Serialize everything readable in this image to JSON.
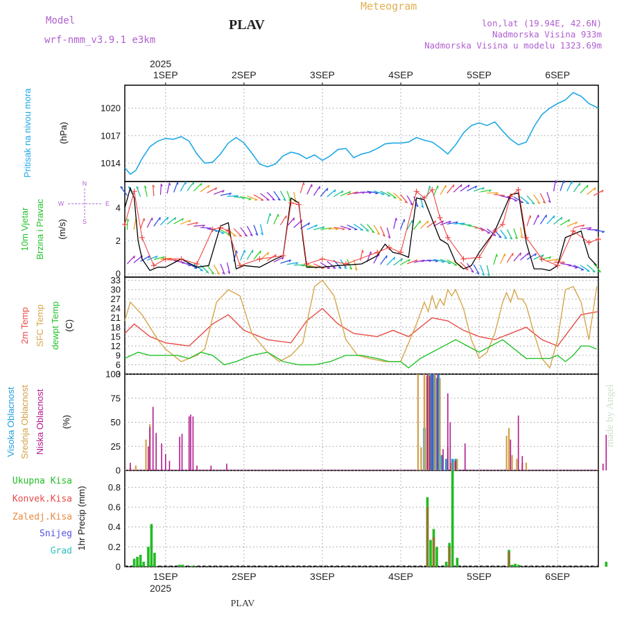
{
  "header": {
    "model_label": "Model",
    "model_name": "wrf-nmm_v3.9.1  e3km",
    "station": "PLAV",
    "meteogram_label": "Meteogram",
    "lonlat": "lon,lat (19.94E, 42.6N)",
    "elevation": "Nadmorska Visina 933m",
    "model_elevation": "Nadmorska Visina u modelu 1323.69m"
  },
  "footer": {
    "station": "PLAV",
    "credit": "made by Angel"
  },
  "colors": {
    "pressure": "#1ea8e6",
    "temp": "#e84a45",
    "sfc": "#d6a54a",
    "dew": "#22c22a",
    "high_cloud": "#1f9fdc",
    "mid_cloud": "#d2a048",
    "low_cloud": "#b0188f",
    "precip": "#22bb22",
    "precip_dark": "#8a7a2a",
    "wind_black": "#000000",
    "wind_red": "#ee3333"
  },
  "time_axis": {
    "year": "2025",
    "days": [
      "1SEP",
      "2SEP",
      "3SEP",
      "4SEP",
      "5SEP",
      "6SEP"
    ],
    "range_days": [
      -0.52,
      5.52
    ]
  },
  "panels": {
    "pressure": {
      "label": "Pritisak na nivou mora",
      "unit": "(hPa)",
      "y_ticks": [
        "1014",
        "1017",
        "1020"
      ]
    },
    "wind": {
      "label1": "10m Vjetar",
      "label2": "Brzina i Pravac",
      "unit": "(m/s)",
      "y_ticks": [
        "0",
        "2",
        "4"
      ],
      "compass": {
        "n": "N",
        "s": "S",
        "w": "W",
        "e": "E"
      }
    },
    "temperature": {
      "label1": "2m Temp",
      "label2": "SFC Temp",
      "label3": "dewpt Temp",
      "unit": "(C)",
      "y_ticks": [
        "3",
        "6",
        "9",
        "12",
        "15",
        "18",
        "21",
        "24",
        "27",
        "30",
        "33"
      ]
    },
    "clouds": {
      "label1": "Visoka Oblacnost",
      "label2": "Srednja Oblacnost",
      "label3": "Niska Oblacnost",
      "unit": "(%)",
      "y_ticks": [
        "0",
        "25",
        "50",
        "75",
        "100"
      ]
    },
    "precip": {
      "label1": "Ukupna Kisa",
      "label2": "Konvek.Kisa",
      "label3": "Zaledj.Kisa",
      "label4": "Snijeg",
      "label5": "Grad",
      "unit": "1hr Precip (mm)",
      "y_ticks": [
        "0",
        "0.2",
        "0.4",
        "0.6",
        "0.8"
      ]
    }
  },
  "chart_data": [
    {
      "type": "line",
      "title": "Pritisak na nivou mora",
      "ylabel": "(hPa)",
      "ylim": [
        1012,
        1022.5
      ],
      "series": [
        {
          "name": "pressure",
          "x": [
            -0.52,
            -0.45,
            -0.38,
            -0.3,
            -0.2,
            -0.1,
            0,
            0.1,
            0.2,
            0.3,
            0.4,
            0.5,
            0.6,
            0.7,
            0.8,
            0.9,
            1.0,
            1.1,
            1.2,
            1.3,
            1.4,
            1.5,
            1.6,
            1.7,
            1.8,
            1.9,
            2.0,
            2.1,
            2.2,
            2.3,
            2.4,
            2.5,
            2.6,
            2.7,
            2.8,
            2.9,
            3.0,
            3.1,
            3.2,
            3.3,
            3.4,
            3.5,
            3.6,
            3.7,
            3.8,
            3.9,
            4.0,
            4.1,
            4.2,
            4.3,
            4.4,
            4.5,
            4.6,
            4.7,
            4.8,
            4.9,
            5.0,
            5.1,
            5.2,
            5.3,
            5.4,
            5.52
          ],
          "values": [
            1013.5,
            1012.8,
            1013.2,
            1014.5,
            1015.8,
            1016.4,
            1016.7,
            1016.6,
            1016.9,
            1016.4,
            1015.0,
            1014.0,
            1014.1,
            1015.0,
            1016.2,
            1016.8,
            1016.2,
            1015.1,
            1013.9,
            1013.6,
            1013.9,
            1014.8,
            1015.2,
            1015.0,
            1014.5,
            1014.9,
            1014.3,
            1014.8,
            1015.5,
            1015.6,
            1014.6,
            1015.0,
            1015.2,
            1015.6,
            1016.1,
            1016.2,
            1016.2,
            1016.3,
            1016.8,
            1016.5,
            1016.3,
            1015.7,
            1015.0,
            1016.0,
            1017.3,
            1018.1,
            1018.4,
            1018.1,
            1018.5,
            1017.5,
            1016.6,
            1016.0,
            1016.3,
            1018.0,
            1019.3,
            1020.0,
            1020.5,
            1020.9,
            1021.7,
            1021.3,
            1020.5,
            1020.0
          ]
        }
      ]
    },
    {
      "type": "line",
      "title": "10m Vjetar Brzina i Pravac",
      "ylabel": "(m/s)",
      "ylim": [
        -0.2,
        5.6
      ],
      "series": [
        {
          "name": "wind speed",
          "x": [
            -0.52,
            -0.45,
            -0.4,
            -0.35,
            -0.3,
            -0.2,
            -0.1,
            0,
            0.2,
            0.4,
            0.55,
            0.7,
            0.8,
            0.9,
            1.0,
            1.2,
            1.4,
            1.5,
            1.6,
            1.7,
            1.75,
            1.8,
            1.9,
            2.0,
            2.2,
            2.5,
            2.7,
            2.8,
            2.9,
            3.0,
            3.1,
            3.2,
            3.3,
            3.4,
            3.5,
            3.6,
            3.7,
            3.8,
            3.9,
            4.0,
            4.2,
            4.4,
            4.5,
            4.6,
            4.7,
            4.8,
            4.9,
            5.0,
            5.1,
            5.3,
            5.4,
            5.5
          ],
          "values": [
            4.0,
            5.2,
            4.6,
            2.0,
            0.9,
            0.2,
            0.4,
            0.4,
            0.9,
            0.4,
            0.5,
            2.9,
            3.1,
            0.3,
            0.5,
            0.4,
            0.9,
            1.1,
            4.6,
            4.3,
            2.2,
            0.4,
            0.4,
            0.4,
            0.5,
            0.6,
            1.1,
            1.8,
            1.3,
            1.2,
            1.0,
            4.6,
            4.5,
            3.3,
            2.1,
            1.8,
            0.7,
            0.3,
            0.5,
            1.3,
            2.6,
            4.8,
            4.9,
            1.9,
            0.3,
            0.3,
            0.2,
            0.5,
            2.2,
            2.6,
            1.0,
            0.5
          ]
        },
        {
          "name": "wind gust",
          "x": [
            -0.52,
            -0.4,
            -0.3,
            -0.15,
            0,
            0.2,
            0.4,
            0.6,
            0.7,
            0.8,
            0.95,
            1.2,
            1.5,
            1.6,
            1.7,
            1.8,
            2.0,
            2.3,
            2.7,
            2.85,
            3.0,
            3.2,
            3.3,
            3.4,
            3.5,
            3.6,
            3.8,
            4.0,
            4.2,
            4.3,
            4.4,
            4.5,
            4.6,
            4.8,
            5.0,
            5.2,
            5.4,
            5.52
          ],
          "values": [
            3.0,
            5.0,
            2.2,
            0.5,
            0.9,
            0.9,
            0.6,
            2.7,
            2.8,
            2.6,
            0.5,
            0.9,
            1.1,
            4.3,
            4.2,
            0.6,
            0.9,
            0.6,
            1.3,
            1.6,
            1.3,
            5.0,
            4.6,
            5.1,
            3.4,
            2.2,
            0.9,
            1.0,
            2.6,
            3.0,
            4.7,
            5.1,
            2.2,
            0.9,
            0.5,
            2.6,
            1.9,
            2.1
          ]
        }
      ]
    },
    {
      "type": "line",
      "title": "2m Temp / SFC Temp / dewpt Temp",
      "ylabel": "(C)",
      "ylim": [
        3,
        34
      ],
      "series": [
        {
          "name": "2m Temp",
          "x": [
            -0.52,
            -0.4,
            -0.2,
            0,
            0.3,
            0.6,
            0.8,
            1.0,
            1.3,
            1.6,
            1.8,
            2.0,
            2.2,
            2.4,
            2.7,
            2.9,
            3.1,
            3.25,
            3.4,
            3.6,
            3.8,
            4.0,
            4.2,
            4.4,
            4.6,
            4.8,
            5.0,
            5.3,
            5.52
          ],
          "values": [
            16,
            19,
            15,
            13,
            12,
            19,
            22,
            17,
            14,
            13,
            20,
            24,
            19,
            16,
            15,
            17,
            15,
            18,
            21,
            20,
            17,
            15,
            14,
            16,
            18,
            14,
            12,
            22,
            23
          ]
        },
        {
          "name": "SFC Temp",
          "x": [
            -0.52,
            -0.45,
            -0.3,
            -0.1,
            0,
            0.2,
            0.4,
            0.5,
            0.65,
            0.8,
            0.95,
            1.1,
            1.3,
            1.45,
            1.6,
            1.75,
            1.9,
            2.0,
            2.15,
            2.3,
            2.45,
            2.6,
            2.8,
            3.0,
            3.2,
            3.3,
            3.35,
            3.4,
            3.45,
            3.5,
            3.55,
            3.6,
            3.65,
            3.7,
            3.75,
            3.8,
            3.9,
            4.0,
            4.1,
            4.2,
            4.3,
            4.35,
            4.4,
            4.45,
            4.5,
            4.55,
            4.6,
            4.7,
            4.8,
            4.9,
            5.0,
            5.1,
            5.2,
            5.3,
            5.4,
            5.5
          ],
          "values": [
            20,
            26,
            22,
            14,
            11,
            7,
            9,
            11,
            26,
            30,
            28,
            16,
            10,
            7,
            9,
            13,
            31,
            33,
            28,
            14,
            9,
            8,
            7,
            7,
            19,
            26,
            23,
            28,
            24,
            27,
            25,
            30,
            28,
            30,
            27,
            24,
            14,
            8,
            10,
            16,
            26,
            29,
            26,
            30,
            27,
            27,
            25,
            16,
            8,
            5,
            14,
            30,
            31,
            26,
            14,
            31
          ]
        },
        {
          "name": "dewpt Temp",
          "x": [
            -0.52,
            -0.35,
            -0.2,
            0,
            0.15,
            0.3,
            0.45,
            0.6,
            0.75,
            0.9,
            1.1,
            1.3,
            1.5,
            1.7,
            1.9,
            2.1,
            2.3,
            2.5,
            2.7,
            2.85,
            3.0,
            3.1,
            3.25,
            3.4,
            3.55,
            3.7,
            3.85,
            4.0,
            4.15,
            4.3,
            4.45,
            4.6,
            4.75,
            4.9,
            5.0,
            5.1,
            5.2,
            5.3,
            5.4,
            5.5
          ],
          "values": [
            8,
            10,
            9,
            9,
            9,
            8,
            10,
            9,
            6,
            7,
            9,
            10,
            7,
            6,
            6,
            7,
            9,
            9,
            8,
            7,
            7,
            5,
            8,
            10,
            12,
            14,
            12,
            10,
            12,
            14,
            11,
            8,
            8,
            8,
            9,
            7,
            9,
            12,
            12,
            11
          ]
        }
      ]
    },
    {
      "type": "bar",
      "title": "Visoka / Srednja / Niska Oblacnost",
      "ylabel": "(%)",
      "ylim": [
        0,
        100
      ],
      "series": [
        {
          "name": "Visoka Oblacnost",
          "x": [
            3.3,
            3.35,
            3.38,
            3.42,
            3.45,
            3.48,
            3.52,
            3.58,
            3.66,
            3.7
          ],
          "values": [
            44,
            100,
            100,
            100,
            96,
            100,
            16,
            12,
            12,
            12
          ]
        },
        {
          "name": "Srednja Oblacnost",
          "x": [
            -0.45,
            -0.38,
            -0.25,
            -0.2,
            2.98,
            3.22,
            3.26,
            3.3,
            3.33,
            3.36,
            3.44,
            3.5,
            3.6,
            3.64,
            3.68,
            3.72,
            4.35,
            4.38,
            4.42,
            4.48,
            4.55,
            4.6
          ],
          "values": [
            3,
            5,
            32,
            48,
            0,
            100,
            24,
            100,
            98,
            100,
            100,
            96,
            25,
            8,
            10,
            12,
            36,
            44,
            16,
            12,
            8,
            8
          ]
        },
        {
          "name": "Niska Oblacnost",
          "x": [
            -0.45,
            -0.22,
            -0.2,
            -0.16,
            -0.12,
            -0.05,
            0,
            0.05,
            0.18,
            0.21,
            0.3,
            0.32,
            0.35,
            0.4,
            0.58,
            0.78,
            3.34,
            3.37,
            3.4,
            3.47,
            3.54,
            3.6,
            3.63,
            3.7,
            3.82,
            4.4,
            4.5,
            4.55,
            5.58,
            5.62,
            5.9,
            5.95
          ],
          "values": [
            8,
            25,
            45,
            66,
            39,
            28,
            17,
            10,
            35,
            38,
            56,
            58,
            56,
            5,
            5,
            7,
            100,
            98,
            100,
            100,
            22,
            80,
            50,
            10,
            28,
            32,
            57,
            15,
            7,
            37,
            9,
            6
          ]
        }
      ]
    },
    {
      "type": "bar",
      "title": "1hr Precip",
      "ylabel": "1hr Precip (mm)",
      "ylim": [
        0,
        0.97
      ],
      "series": [
        {
          "name": "Ukupna Kisa",
          "x": [
            -0.4,
            -0.36,
            -0.32,
            -0.28,
            -0.22,
            -0.18,
            -0.14,
            0.18,
            0.22,
            0.34,
            3.34,
            3.38,
            3.42,
            3.46,
            3.58,
            3.62,
            3.66,
            3.72,
            4.38,
            4.42,
            4.46,
            4.5,
            5.62
          ],
          "values": [
            0.08,
            0.1,
            0.12,
            0.05,
            0.2,
            0.43,
            0.14,
            0.02,
            0.02,
            0.01,
            0.7,
            0.27,
            0.38,
            0.2,
            0.05,
            0.24,
            0.97,
            0.09,
            0.17,
            0.02,
            0.03,
            0.02,
            0.05
          ]
        },
        {
          "name": "Konvek.Kisa",
          "x": [
            3.34,
            3.42,
            3.62,
            4.38
          ],
          "values": [
            0.6,
            0.3,
            0.2,
            0.15
          ]
        }
      ]
    }
  ]
}
